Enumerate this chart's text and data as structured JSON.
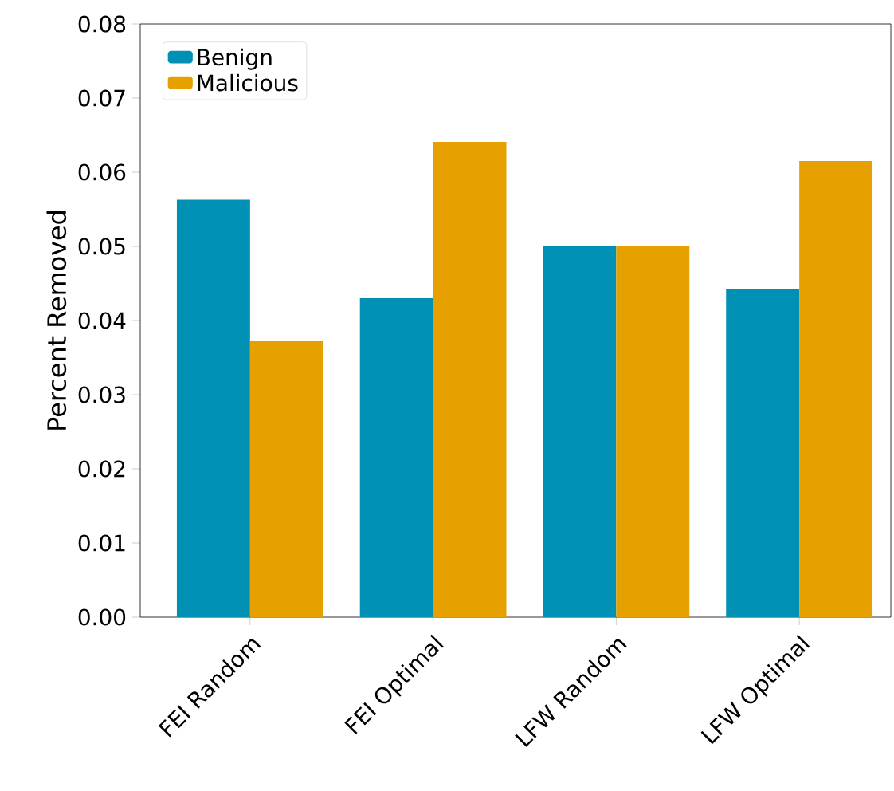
{
  "chart_data": {
    "type": "bar",
    "ylabel": "Percent Removed",
    "categories": [
      "FEI Random",
      "FEI Optimal",
      "LFW Random",
      "LFW Optimal"
    ],
    "series": [
      {
        "name": "Benign",
        "color": "#0090b4",
        "values": [
          0.0563,
          0.043,
          0.05,
          0.0443
        ]
      },
      {
        "name": "Malicious",
        "color": "#e6a000",
        "values": [
          0.0372,
          0.0641,
          0.05,
          0.0615
        ]
      }
    ],
    "ylim": [
      0,
      0.08
    ],
    "yticks": [
      {
        "value": 0,
        "label": "0.00"
      },
      {
        "value": 0.01,
        "label": "0.01"
      },
      {
        "value": 0.02,
        "label": "0.02"
      },
      {
        "value": 0.03,
        "label": "0.03"
      },
      {
        "value": 0.04,
        "label": "0.04"
      },
      {
        "value": 0.05,
        "label": "0.05"
      },
      {
        "value": 0.06,
        "label": "0.06"
      },
      {
        "value": 0.07,
        "label": "0.07"
      },
      {
        "value": 0.08,
        "label": "0.08"
      }
    ],
    "grid": false,
    "legend": "top left"
  }
}
